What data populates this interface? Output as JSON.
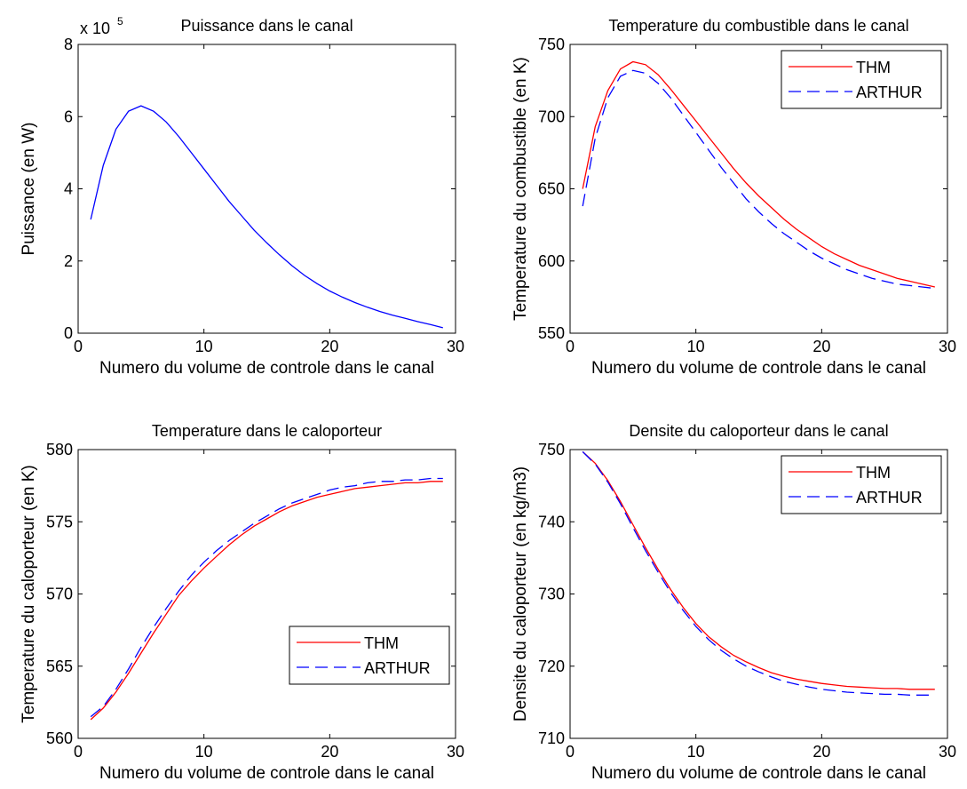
{
  "chart_data": [
    {
      "type": "line",
      "title": "Puissance dans le canal",
      "xlabel": "Numero du volume de controle dans le canal",
      "ylabel": "Puissance (en W)",
      "xlim": [
        0,
        30
      ],
      "ylim": [
        0,
        8
      ],
      "xticks": [
        "0",
        "10",
        "20",
        "30"
      ],
      "yticks": [
        "0",
        "2",
        "4",
        "6",
        "8"
      ],
      "multiplier_base": "x 10",
      "multiplier_exp": "5",
      "grid": false,
      "legend": null,
      "x": [
        1,
        2,
        3,
        4,
        5,
        6,
        7,
        8,
        9,
        10,
        11,
        12,
        13,
        14,
        15,
        16,
        17,
        18,
        19,
        20,
        21,
        22,
        23,
        24,
        25,
        26,
        27,
        28,
        29
      ],
      "series": [
        {
          "color": "#0000ff",
          "dash": "",
          "values": [
            3.15,
            4.65,
            5.65,
            6.15,
            6.3,
            6.15,
            5.85,
            5.45,
            5.0,
            4.55,
            4.1,
            3.65,
            3.25,
            2.85,
            2.5,
            2.17,
            1.87,
            1.6,
            1.37,
            1.17,
            1.0,
            0.85,
            0.72,
            0.6,
            0.5,
            0.41,
            0.32,
            0.24,
            0.15
          ]
        }
      ]
    },
    {
      "type": "line",
      "title": "Temperature du combustible dans le canal",
      "xlabel": "Numero du volume de controle dans le canal",
      "ylabel": "Temperature du combustible (en K)",
      "xlim": [
        0,
        30
      ],
      "ylim": [
        550,
        750
      ],
      "xticks": [
        "0",
        "10",
        "20",
        "30"
      ],
      "yticks": [
        "550",
        "600",
        "650",
        "700",
        "750"
      ],
      "grid": false,
      "legend": "top-right",
      "x": [
        1,
        2,
        3,
        4,
        5,
        6,
        7,
        8,
        9,
        10,
        11,
        12,
        13,
        14,
        15,
        16,
        17,
        18,
        19,
        20,
        21,
        22,
        23,
        24,
        25,
        26,
        27,
        28,
        29
      ],
      "series": [
        {
          "name": "THM",
          "color": "#ff0000",
          "dash": "",
          "values": [
            650,
            693,
            718,
            733,
            738,
            736,
            729,
            719,
            708,
            697,
            686,
            675,
            664,
            654,
            645,
            637,
            629,
            622,
            616,
            610,
            605,
            601,
            597,
            594,
            591,
            588,
            586,
            584,
            582
          ]
        },
        {
          "name": "ARTHUR",
          "color": "#0000ff",
          "dash": "14,7",
          "values": [
            638,
            685,
            713,
            728,
            732,
            730,
            723,
            713,
            701,
            689,
            677,
            665,
            654,
            643,
            634,
            626,
            619,
            613,
            607,
            602,
            598,
            594,
            591,
            588,
            586,
            584,
            583,
            582,
            581
          ]
        }
      ]
    },
    {
      "type": "line",
      "title": "Temperature dans le caloporteur",
      "xlabel": "Numero du volume de controle dans le canal",
      "ylabel": "Temperature du caloporteur (en K)",
      "xlim": [
        0,
        30
      ],
      "ylim": [
        560,
        580
      ],
      "xticks": [
        "0",
        "10",
        "20",
        "30"
      ],
      "yticks": [
        "560",
        "565",
        "570",
        "575",
        "580"
      ],
      "grid": false,
      "legend": "bottom-right",
      "x": [
        1,
        2,
        3,
        4,
        5,
        6,
        7,
        8,
        9,
        10,
        11,
        12,
        13,
        14,
        15,
        16,
        17,
        18,
        19,
        20,
        21,
        22,
        23,
        24,
        25,
        26,
        27,
        28,
        29
      ],
      "series": [
        {
          "name": "THM",
          "color": "#ff0000",
          "dash": "",
          "values": [
            561.3,
            562.1,
            563.2,
            564.5,
            565.9,
            567.3,
            568.6,
            569.9,
            570.9,
            571.8,
            572.6,
            573.4,
            574.1,
            574.7,
            575.2,
            575.7,
            576.1,
            576.4,
            576.7,
            576.9,
            577.1,
            577.3,
            577.4,
            577.5,
            577.6,
            577.7,
            577.7,
            577.8,
            577.8
          ]
        },
        {
          "name": "ARTHUR",
          "color": "#0000ff",
          "dash": "14,7",
          "values": [
            561.5,
            562.2,
            563.4,
            564.8,
            566.3,
            567.7,
            569.0,
            570.2,
            571.3,
            572.2,
            573.0,
            573.7,
            574.3,
            574.9,
            575.4,
            575.9,
            576.3,
            576.6,
            576.9,
            577.2,
            577.4,
            577.5,
            577.7,
            577.8,
            577.8,
            577.9,
            577.9,
            578.0,
            578.0
          ]
        }
      ]
    },
    {
      "type": "line",
      "title": "Densite du caloporteur dans le canal",
      "xlabel": "Numero du volume de controle dans le canal",
      "ylabel": "Densite du caloporteur (en kg/m3)",
      "xlim": [
        0,
        30
      ],
      "ylim": [
        710,
        750
      ],
      "xticks": [
        "0",
        "10",
        "20",
        "30"
      ],
      "yticks": [
        "710",
        "720",
        "730",
        "740",
        "750"
      ],
      "grid": false,
      "legend": "top-right",
      "x": [
        1,
        2,
        3,
        4,
        5,
        6,
        7,
        8,
        9,
        10,
        11,
        12,
        13,
        14,
        15,
        16,
        17,
        18,
        19,
        20,
        21,
        22,
        23,
        24,
        25,
        26,
        27,
        28,
        29
      ],
      "series": [
        {
          "name": "THM",
          "color": "#ff0000",
          "dash": "",
          "values": [
            749.7,
            748.1,
            745.7,
            742.8,
            739.6,
            736.4,
            733.4,
            730.6,
            728.1,
            725.9,
            724.1,
            722.7,
            721.5,
            720.6,
            719.8,
            719.1,
            718.6,
            718.2,
            717.9,
            717.6,
            717.4,
            717.2,
            717.1,
            717.0,
            716.9,
            716.9,
            716.8,
            716.8,
            716.8
          ]
        },
        {
          "name": "ARTHUR",
          "color": "#0000ff",
          "dash": "14,7",
          "values": [
            749.7,
            748.0,
            745.5,
            742.5,
            739.2,
            736.0,
            733.0,
            730.2,
            727.7,
            725.5,
            723.7,
            722.2,
            721.0,
            720.0,
            719.2,
            718.5,
            717.9,
            717.5,
            717.1,
            716.8,
            716.6,
            716.4,
            716.3,
            716.2,
            716.1,
            716.1,
            716.0,
            716.0,
            716.0
          ]
        }
      ]
    }
  ]
}
